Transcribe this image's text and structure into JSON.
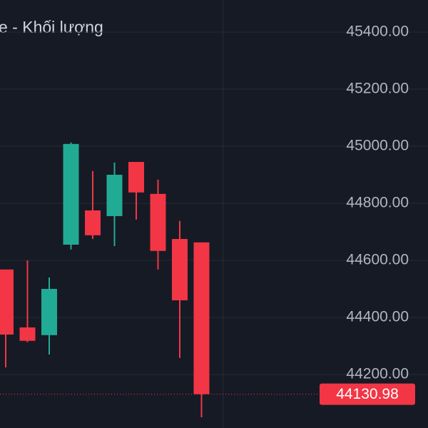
{
  "chart_data": {
    "type": "candlestick",
    "legend_text": "e - Khối lượng",
    "categories": [
      null,
      null,
      null,
      null,
      null,
      null,
      null,
      null,
      null,
      null
    ],
    "open": [
      44568,
      44365,
      44338,
      44655,
      44775,
      44755,
      44945,
      44833,
      44675,
      44663
    ],
    "high": [
      44568,
      44600,
      44540,
      45013,
      44913,
      44943,
      44945,
      44883,
      44738,
      44663
    ],
    "low": [
      44225,
      44313,
      44270,
      44638,
      44675,
      44650,
      44743,
      44568,
      44258,
      44050
    ],
    "close": [
      44340,
      44318,
      44500,
      45008,
      44688,
      44900,
      44838,
      44633,
      44460,
      44130.98
    ],
    "up_color": "#22ab94",
    "down_color": "#f23645",
    "ylim": [
      44012.5,
      45512.5
    ],
    "yticks": [
      {
        "value": 44200,
        "label": "44200.00"
      },
      {
        "value": 44400,
        "label": "44400.00"
      },
      {
        "value": 44600,
        "label": "44600.00"
      },
      {
        "value": 44800,
        "label": "44800.00"
      },
      {
        "value": 45000,
        "label": "45000.00"
      },
      {
        "value": 45200,
        "label": "45200.00"
      },
      {
        "value": 45400,
        "label": "45400.00"
      }
    ],
    "grid": true,
    "last_price": 44130.98
  }
}
